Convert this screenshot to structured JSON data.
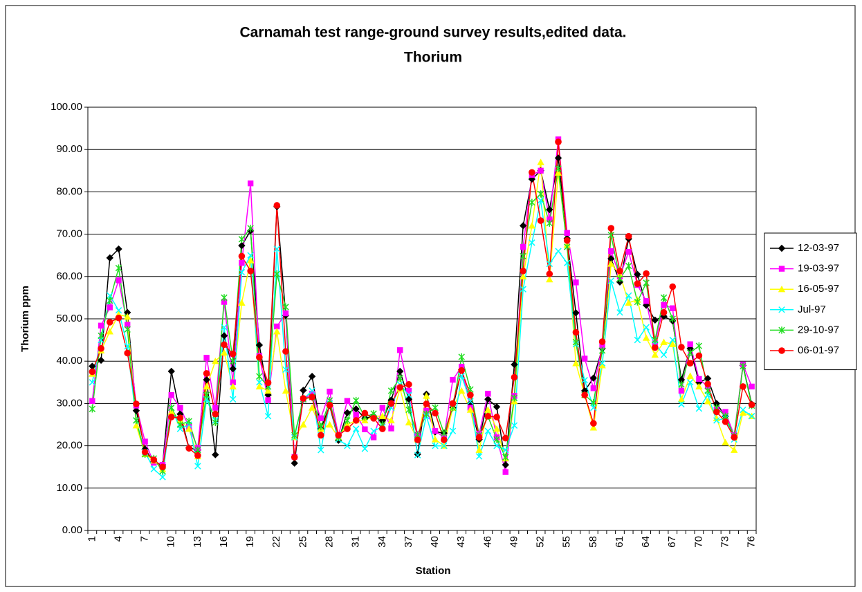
{
  "chart_data": {
    "type": "line",
    "title": "Carnamah test range-ground survey results,edited data.",
    "subtitle": "Thorium",
    "x_label": "Station",
    "y_label": "Thorium ppm",
    "grid": true,
    "legend": "right",
    "categories": [
      "1",
      null,
      null,
      "4",
      null,
      null,
      "7",
      null,
      null,
      "10",
      null,
      null,
      "13",
      null,
      null,
      "16",
      null,
      null,
      "19",
      null,
      null,
      "22",
      null,
      null,
      "25",
      null,
      null,
      "28",
      null,
      null,
      "31",
      null,
      null,
      "34",
      null,
      null,
      "37",
      null,
      null,
      "40",
      null,
      null,
      "43",
      null,
      null,
      "46",
      null,
      null,
      "49",
      null,
      null,
      "52",
      null,
      null,
      "55",
      null,
      null,
      "58",
      null,
      null,
      "61",
      null,
      null,
      "64",
      null,
      null,
      "67",
      null,
      null,
      "70",
      null,
      null,
      "73",
      null,
      null,
      "76"
    ],
    "ylim": [
      0,
      100
    ],
    "yticks": [
      {
        "value": 0,
        "label": "0.00"
      },
      {
        "value": 10,
        "label": "10.00"
      },
      {
        "value": 20,
        "label": "20.00"
      },
      {
        "value": 30,
        "label": "30.00"
      },
      {
        "value": 40,
        "label": "40.00"
      },
      {
        "value": 50,
        "label": "50.00"
      },
      {
        "value": 60,
        "label": "60.00"
      },
      {
        "value": 70,
        "label": "70.00"
      },
      {
        "value": 80,
        "label": "80.00"
      },
      {
        "value": 90,
        "label": "90.00"
      },
      {
        "value": 100,
        "label": "100.00"
      }
    ],
    "series": [
      {
        "name": "12-03-97",
        "color": "#000000",
        "marker": "diamond",
        "values": [
          38.8,
          40.2,
          64.4,
          66.5,
          51.5,
          28.3,
          19.2,
          16.2,
          15.5,
          37.6,
          27.5,
          19.5,
          19.0,
          35.6,
          17.9,
          46.0,
          38.2,
          67.3,
          70.8,
          43.8,
          32.0,
          76.5,
          50.8,
          15.9,
          33.1,
          36.4,
          24.0,
          29.5,
          21.3,
          27.8,
          28.7,
          26.5,
          27.0,
          26.0,
          30.8,
          37.6,
          31.0,
          18.0,
          32.2,
          23.3,
          23.0,
          29.0,
          38.0,
          30.0,
          21.5,
          31.0,
          29.2,
          15.5,
          39.2,
          72.0,
          83.0,
          85.0,
          75.8,
          88.0,
          69.0,
          51.4,
          33.0,
          36.0,
          43.0,
          64.2,
          58.7,
          68.9,
          60.5,
          53.2,
          49.7,
          50.6,
          49.5,
          35.6,
          43.0,
          35.0,
          35.9,
          30.0,
          27.0,
          22.0,
          39.0,
          29.8
        ]
      },
      {
        "name": "19-03-97",
        "color": "#ff00ff",
        "marker": "square",
        "values": [
          30.6,
          48.4,
          52.7,
          59.1,
          48.6,
          29.5,
          21.0,
          16.0,
          15.5,
          32.0,
          29.0,
          24.5,
          19.5,
          40.8,
          29.0,
          54.0,
          35.0,
          63.2,
          82.0,
          41.2,
          30.8,
          48.2,
          51.3,
          17.4,
          31.0,
          32.3,
          26.5,
          32.8,
          22.5,
          30.6,
          27.3,
          23.9,
          22.0,
          29.0,
          24.1,
          42.6,
          33.0,
          22.6,
          28.3,
          23.5,
          22.0,
          35.6,
          38.7,
          29.0,
          22.8,
          32.3,
          22.0,
          13.8,
          31.8,
          67.0,
          84.0,
          85.0,
          73.5,
          92.4,
          70.3,
          58.6,
          40.6,
          33.6,
          43.6,
          66.0,
          60.0,
          65.8,
          58.0,
          54.2,
          44.2,
          53.3,
          52.5,
          33.0,
          44.0,
          35.8,
          34.0,
          28.5,
          28.0,
          22.5,
          39.2,
          34.0
        ]
      },
      {
        "name": "16-05-97",
        "color": "#ffff00",
        "marker": "triangle",
        "values": [
          37.0,
          42.5,
          47.0,
          51.0,
          50.5,
          24.8,
          18.0,
          16.5,
          14.5,
          28.0,
          26.0,
          24.0,
          17.5,
          34.0,
          40.0,
          42.0,
          34.0,
          53.8,
          63.8,
          34.0,
          33.0,
          47.0,
          33.0,
          22.0,
          25.0,
          29.0,
          24.0,
          25.0,
          22.0,
          25.0,
          26.0,
          26.0,
          27.0,
          27.0,
          26.0,
          33.5,
          25.5,
          21.5,
          31.8,
          21.5,
          20.0,
          29.0,
          33.0,
          28.5,
          19.0,
          28.5,
          24.0,
          17.0,
          30.5,
          60.0,
          72.0,
          87.0,
          59.3,
          84.5,
          67.5,
          39.5,
          32.0,
          24.3,
          39.0,
          63.0,
          60.5,
          53.8,
          54.5,
          45.5,
          41.5,
          44.5,
          44.0,
          31.0,
          36.5,
          34.0,
          30.5,
          26.5,
          20.8,
          19.0,
          27.8,
          27.0
        ]
      },
      {
        "name": "Jul-97",
        "color": "#00ffff",
        "marker": "x",
        "values": [
          35.0,
          45.0,
          55.5,
          52.0,
          43.5,
          26.0,
          18.5,
          14.5,
          12.6,
          29.0,
          24.0,
          25.0,
          15.2,
          31.0,
          26.0,
          48.0,
          31.0,
          61.0,
          65.0,
          35.0,
          27.0,
          66.5,
          38.0,
          22.0,
          31.0,
          33.0,
          19.0,
          30.0,
          21.5,
          20.0,
          24.0,
          19.3,
          23.5,
          24.5,
          29.0,
          34.5,
          32.0,
          17.8,
          27.0,
          20.0,
          20.0,
          23.5,
          36.5,
          30.5,
          17.5,
          23.5,
          20.0,
          19.0,
          24.8,
          57.0,
          68.0,
          78.0,
          63.0,
          66.0,
          63.2,
          44.0,
          35.5,
          29.0,
          39.5,
          59.0,
          51.5,
          55.5,
          45.0,
          48.0,
          44.0,
          41.5,
          45.0,
          29.8,
          35.0,
          28.8,
          32.0,
          26.0,
          26.5,
          21.5,
          28.5,
          27.0
        ]
      },
      {
        "name": "29-10-97",
        "color": "#22dd22",
        "marker": "star",
        "values": [
          28.7,
          46.0,
          54.3,
          62.0,
          47.5,
          26.0,
          18.0,
          17.0,
          14.0,
          29.0,
          25.0,
          25.8,
          19.0,
          32.0,
          25.5,
          55.0,
          40.0,
          68.8,
          71.4,
          36.4,
          34.0,
          60.6,
          52.8,
          22.5,
          31.0,
          31.5,
          24.5,
          30.7,
          22.0,
          26.0,
          30.7,
          26.8,
          27.6,
          25.0,
          33.0,
          36.0,
          28.5,
          22.6,
          27.5,
          29.0,
          23.0,
          29.0,
          41.0,
          33.3,
          22.5,
          27.0,
          21.5,
          17.3,
          31.3,
          64.8,
          77.5,
          79.5,
          72.6,
          85.5,
          67.0,
          44.5,
          32.0,
          30.2,
          42.5,
          69.8,
          59.5,
          62.5,
          54.0,
          58.5,
          45.0,
          55.0,
          50.0,
          34.5,
          42.0,
          43.6,
          33.0,
          29.0,
          27.0,
          22.3,
          38.8,
          29.5
        ]
      },
      {
        "name": "06-01-97",
        "color": "#ff0000",
        "marker": "circle",
        "values": [
          37.5,
          43.0,
          49.2,
          50.2,
          41.9,
          29.9,
          18.5,
          16.7,
          15.0,
          26.8,
          26.6,
          19.4,
          17.7,
          37.1,
          27.5,
          43.9,
          41.7,
          64.8,
          61.3,
          40.9,
          34.9,
          76.8,
          42.3,
          17.3,
          31.2,
          31.5,
          22.5,
          29.6,
          22.5,
          24.0,
          26.0,
          27.7,
          26.5,
          24.0,
          30.0,
          33.8,
          34.5,
          21.4,
          29.9,
          27.7,
          21.4,
          30.0,
          37.8,
          32.0,
          22.0,
          27.0,
          26.8,
          21.8,
          36.2,
          61.3,
          84.6,
          73.2,
          60.6,
          91.8,
          68.5,
          46.8,
          32.0,
          25.3,
          44.6,
          71.4,
          61.3,
          69.5,
          58.3,
          60.7,
          43.2,
          51.5,
          57.6,
          43.3,
          39.5,
          41.3,
          34.6,
          28.0,
          25.7,
          22.0,
          34.0,
          29.7
        ]
      }
    ]
  }
}
